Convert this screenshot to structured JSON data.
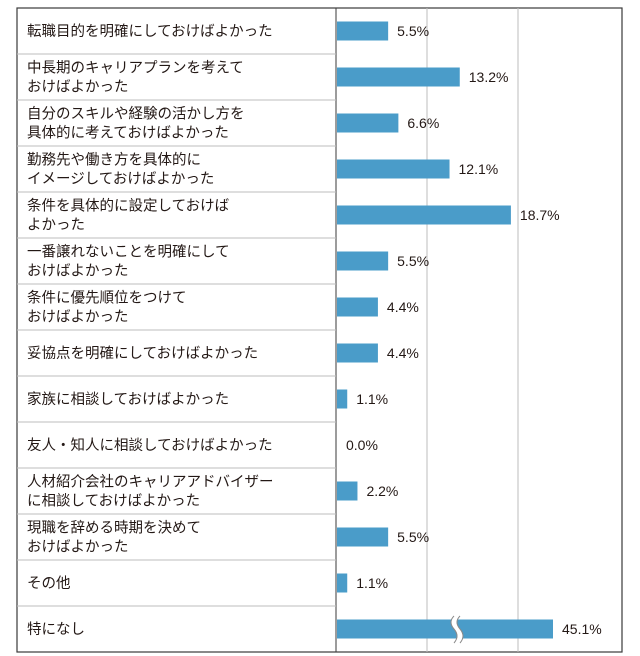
{
  "chart_data": {
    "type": "bar",
    "orientation": "horizontal",
    "categories": [
      [
        "転職目的を明確にしておけばよかった"
      ],
      [
        "中長期のキャリアプランを考えて",
        "おけばよかった"
      ],
      [
        "自分のスキルや経験の活かし方を",
        "具体的に考えておけばよかった"
      ],
      [
        "勤務先や働き方を具体的に",
        "イメージしておけばよかった"
      ],
      [
        "条件を具体的に設定しておけば",
        "よかった"
      ],
      [
        "一番譲れないことを明確にして",
        "おけばよかった"
      ],
      [
        "条件に優先順位をつけて",
        "おけばよかった"
      ],
      [
        "妥協点を明確にしておけばよかった"
      ],
      [
        "家族に相談しておけばよかった"
      ],
      [
        "友人・知人に相談しておけばよかった"
      ],
      [
        "人材紹介会社のキャリアアドバイザー",
        "に相談しておけばよかった"
      ],
      [
        "現職を辞める時期を決めて",
        "おけばよかった"
      ],
      [
        "その他"
      ],
      [
        "特になし"
      ]
    ],
    "values": [
      5.5,
      13.2,
      6.6,
      12.1,
      18.7,
      5.5,
      4.4,
      4.4,
      1.1,
      0.0,
      2.2,
      5.5,
      1.1,
      45.1
    ],
    "value_labels": [
      "5.5%",
      "13.2%",
      "6.6%",
      "12.1%",
      "18.7%",
      "5.5%",
      "4.4%",
      "4.4%",
      "1.1%",
      "0.0%",
      "2.2%",
      "5.5%",
      "1.1%",
      "45.1%"
    ],
    "axis_break_on_last_bar": true,
    "grid": true,
    "bar_color": "#4a9cc9",
    "border_color": "#3a3a3a",
    "grid_color": "#bdbdbd"
  }
}
